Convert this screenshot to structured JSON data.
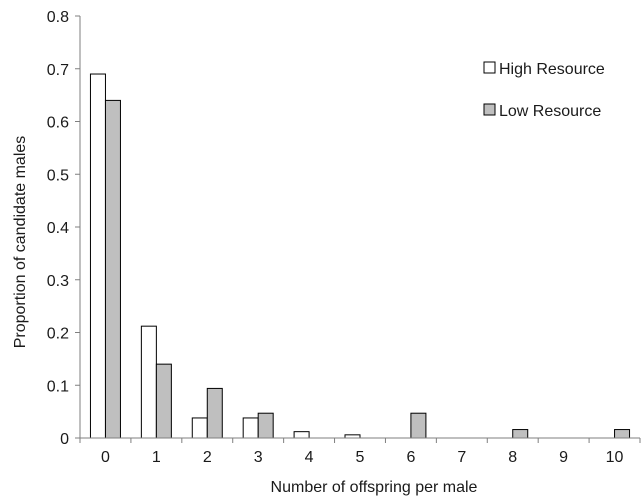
{
  "chart_data": {
    "type": "bar",
    "xlabel": "Number of offspring per male",
    "ylabel": "Proportion of candidate males",
    "ylim": [
      0,
      0.8
    ],
    "yticks": [
      0,
      0.1,
      0.2,
      0.3,
      0.4,
      0.5,
      0.6,
      0.7,
      0.8
    ],
    "ytick_labels": [
      "0",
      "0.1",
      "0.2",
      "0.3",
      "0.4",
      "0.5",
      "0.6",
      "0.7",
      "0.8"
    ],
    "categories": [
      "0",
      "1",
      "2",
      "3",
      "4",
      "5",
      "6",
      "7",
      "8",
      "9",
      "10"
    ],
    "legend_position": "top-right",
    "grid": false,
    "series": [
      {
        "name": "High Resource",
        "color": "#ffffff",
        "values": [
          0.69,
          0.212,
          0.038,
          0.038,
          0.012,
          0.006,
          0,
          0,
          0,
          0,
          0
        ]
      },
      {
        "name": "Low Resource",
        "color": "#bfbfbf",
        "values": [
          0.64,
          0.14,
          0.094,
          0.047,
          0,
          0,
          0.047,
          0,
          0.016,
          0,
          0.016
        ]
      }
    ]
  }
}
